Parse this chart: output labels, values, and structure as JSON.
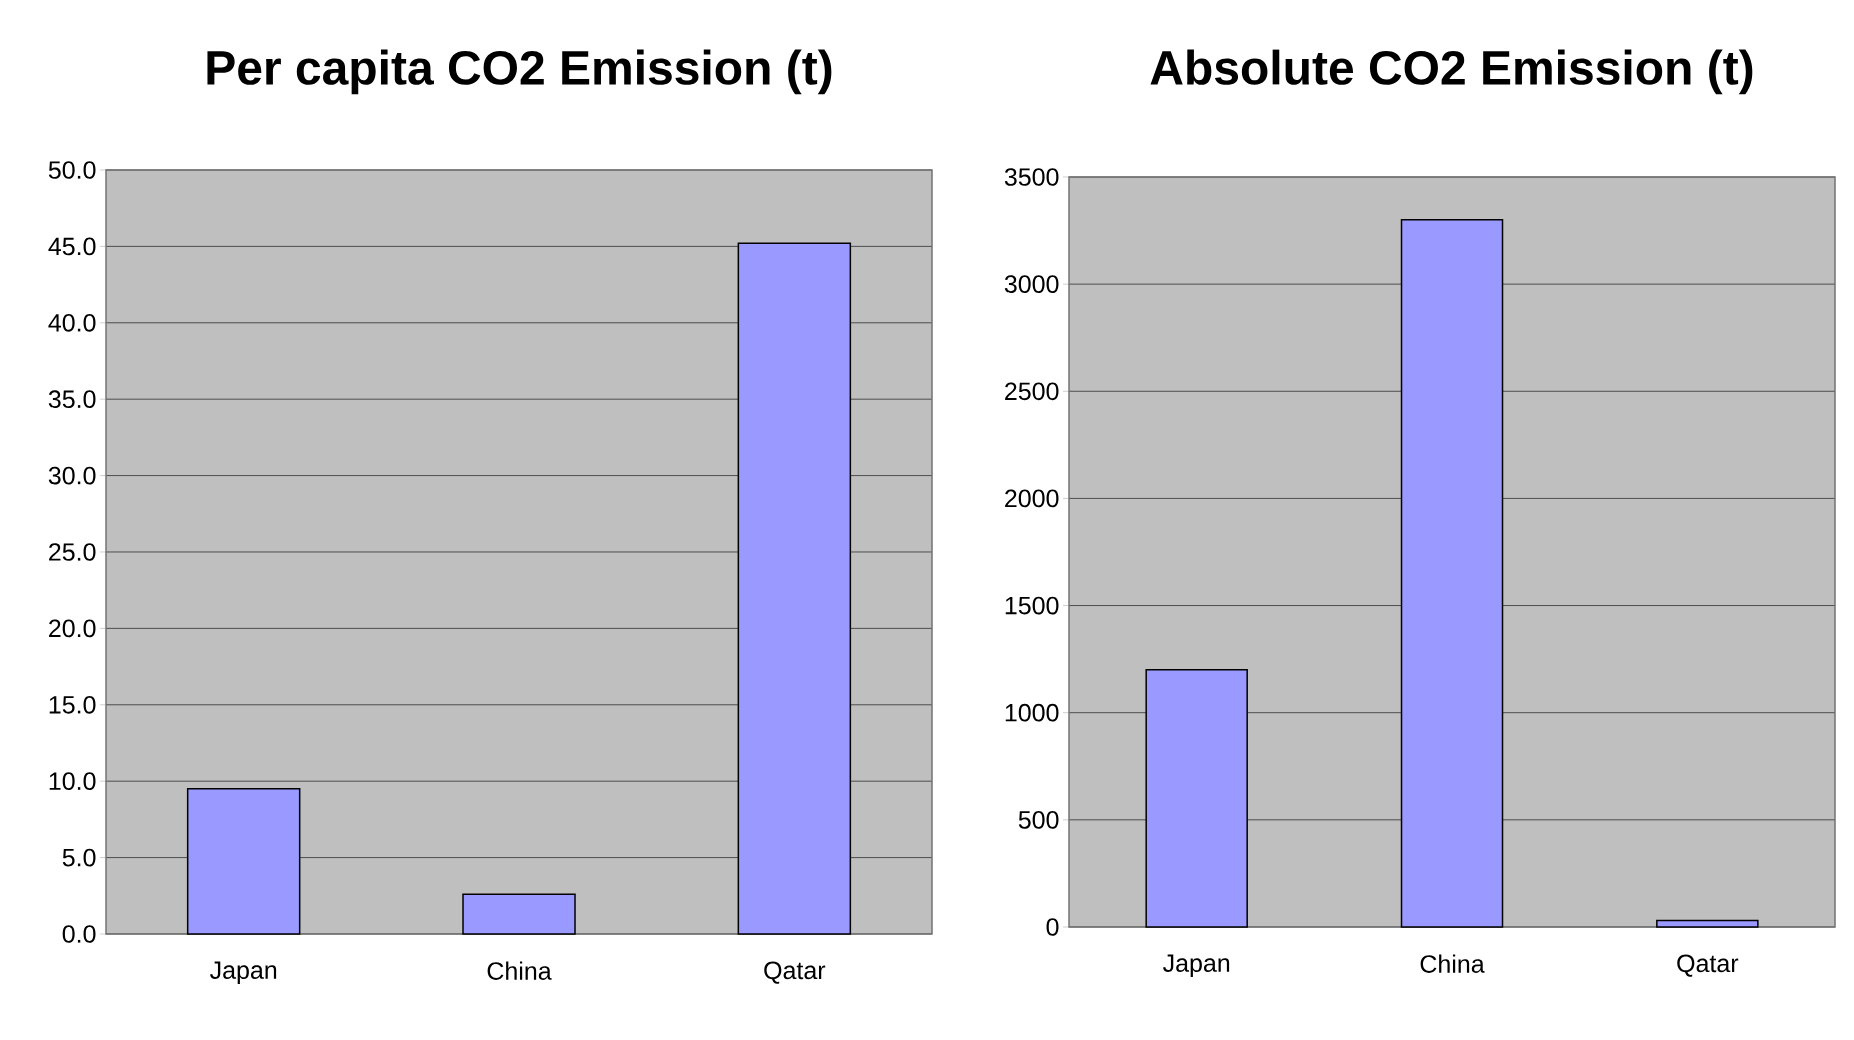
{
  "chart_data": [
    {
      "type": "bar",
      "title": "Per capita CO2 Emission (t)",
      "categories": [
        "Japan",
        "China",
        "Qatar"
      ],
      "values": [
        9.5,
        2.6,
        45.2
      ],
      "color": "#9999ff",
      "ylim": [
        0,
        50
      ],
      "yticks": [
        {
          "value": 0,
          "label": "0.0"
        },
        {
          "value": 5,
          "label": "5.0"
        },
        {
          "value": 10,
          "label": "10.0"
        },
        {
          "value": 15,
          "label": "15.0"
        },
        {
          "value": 20,
          "label": "20.0"
        },
        {
          "value": 25,
          "label": "25.0"
        },
        {
          "value": 30,
          "label": "30.0"
        },
        {
          "value": 35,
          "label": "35.0"
        },
        {
          "value": 40,
          "label": "40.0"
        },
        {
          "value": 45,
          "label": "45.0"
        },
        {
          "value": 50,
          "label": "50.0"
        }
      ],
      "grid": "y"
    },
    {
      "type": "bar",
      "title": "Absolute CO2 Emission (t)",
      "categories": [
        "Japan",
        "China",
        "Qatar"
      ],
      "values": [
        1200,
        3300,
        30
      ],
      "color": "#9999ff",
      "ylim": [
        0,
        3500
      ],
      "yticks": [
        0,
        500,
        1000,
        1500,
        2000,
        2500,
        3000,
        3500
      ],
      "grid": "y"
    }
  ]
}
